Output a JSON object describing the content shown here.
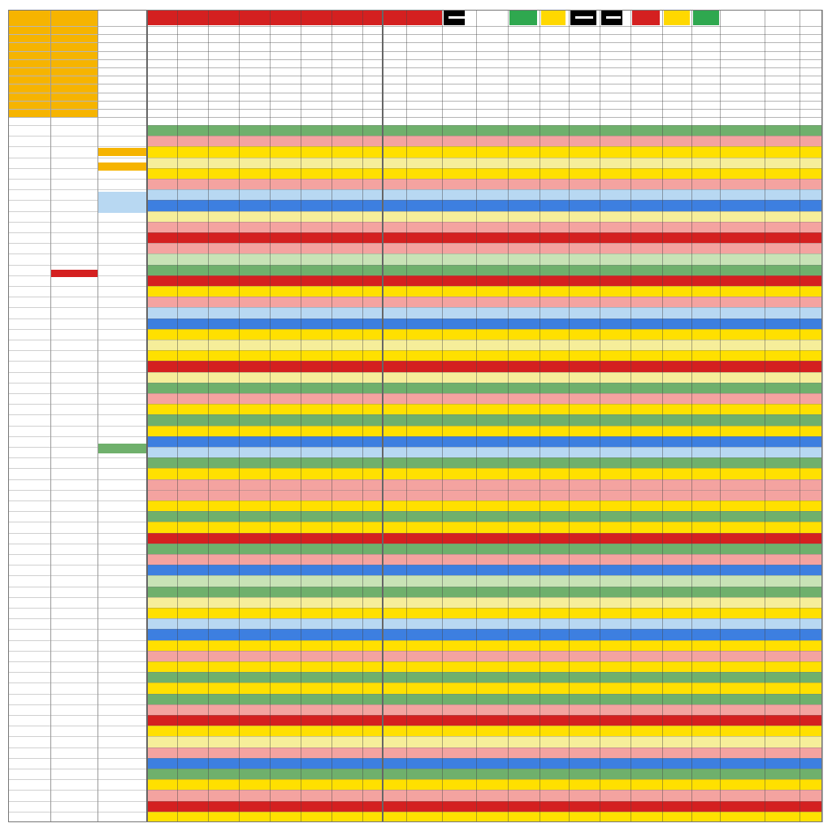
{
  "spreadsheet": {
    "top_header_colors": [
      "#d42020",
      "#000000",
      "#2fa84f",
      "#ffd800",
      "#000000",
      "#000000",
      "#d42020",
      "#ffd800",
      "#2fa84f"
    ],
    "row_fills": [
      "#6fb06c",
      "#f4a3a0",
      "#ffe000",
      "#f6ee9a",
      "#ffe000",
      "#f4a3a0",
      "#b8d8f2",
      "#3d7fe0",
      "#f6ee9a",
      "#f4a3a0",
      "#d42020",
      "#f4a3a0",
      "#c8e3b6",
      "#6fb06c",
      "#d42020",
      "#ffe000",
      "#f4a3a0",
      "#b8d8f2",
      "#3d7fe0",
      "#ffe000",
      "#f6ee9a",
      "#ffe000",
      "#d42020",
      "#f6ee9a",
      "#6fb06c",
      "#f4a3a0",
      "#ffe000",
      "#6fb06c",
      "#ffe000",
      "#3d7fe0",
      "#b8d8f2",
      "#6fb06c",
      "#ffe000",
      "#f4a3a0",
      "#f4a3a0",
      "#ffe000",
      "#6fb06c",
      "#ffe000",
      "#d42020",
      "#6fb06c",
      "#f4a3a0",
      "#3d7fe0",
      "#c8e3b6",
      "#6fb06c",
      "#f6ee9a",
      "#ffe000",
      "#b8d8f2",
      "#3d7fe0",
      "#ffe000",
      "#f4a3a0",
      "#ffe000",
      "#6fb06c",
      "#ffe000",
      "#6fb06c",
      "#f4a3a0",
      "#d42020",
      "#ffe000",
      "#f6ee9a",
      "#f4a3a0",
      "#3d7fe0",
      "#6fb06c",
      "#ffe000",
      "#f4a3a0",
      "#d42020",
      "#ffe000"
    ],
    "left_header_fill": "#f6b400",
    "light_blue": "#b8d8f2",
    "green": "#6fb06c",
    "red": "#d42020"
  }
}
